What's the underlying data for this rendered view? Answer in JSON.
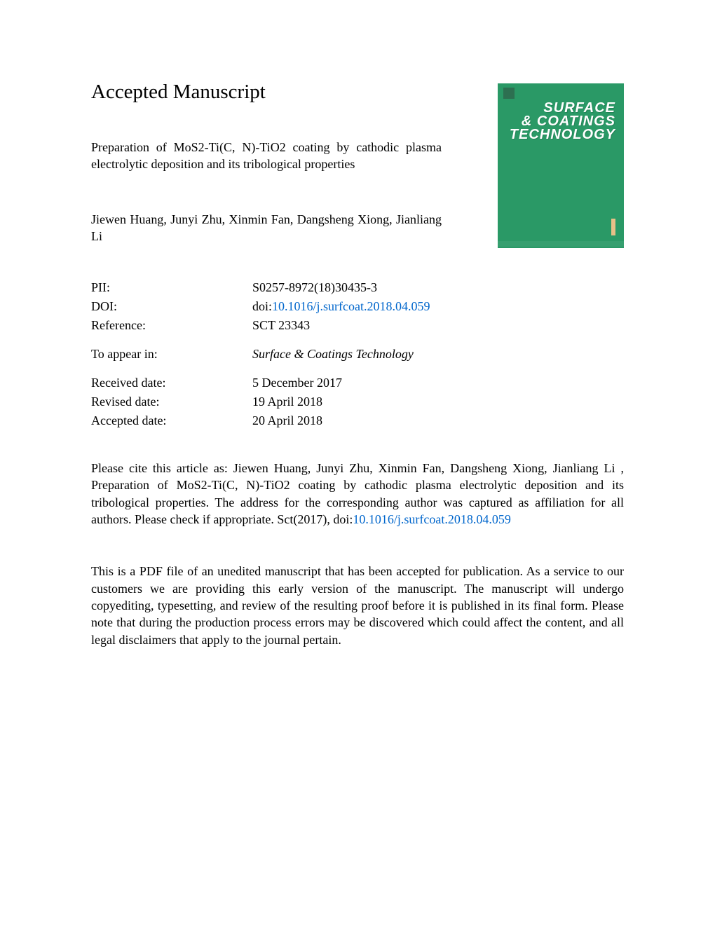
{
  "colors": {
    "link": "#0066cc",
    "text": "#000000",
    "background": "#ffffff",
    "cover_bg": "#2a9966",
    "cover_bar": "#e8c088"
  },
  "typography": {
    "heading_size_pt": 22,
    "body_size_pt": 13,
    "font_family": "Times New Roman"
  },
  "heading": "Accepted Manuscript",
  "title": "Preparation of MoS2-Ti(C, N)-TiO2 coating by cathodic plasma electrolytic deposition and its tribological properties",
  "authors": "Jiewen Huang, Junyi Zhu, Xinmin Fan, Dangsheng Xiong, Jianliang Li",
  "journal_cover": {
    "line1": "SURFACE",
    "line2": "& COATINGS",
    "line3": "TECHNOLOGY"
  },
  "meta": {
    "pii_label": "PII:",
    "pii_value": "S0257-8972(18)30435-3",
    "doi_label": "DOI:",
    "doi_prefix": "doi:",
    "doi_link": "10.1016/j.surfcoat.2018.04.059",
    "ref_label": "Reference:",
    "ref_value": "SCT 23343",
    "appear_label": "To appear in:",
    "appear_value": "Surface & Coatings Technology",
    "received_label": "Received date:",
    "received_value": "5 December 2017",
    "revised_label": "Revised date:",
    "revised_value": "19 April 2018",
    "accepted_label": "Accepted date:",
    "accepted_value": "20 April 2018"
  },
  "cite": {
    "prefix": "Please cite this article as: Jiewen Huang, Junyi Zhu, Xinmin Fan, Dangsheng Xiong, Jianliang Li , Preparation of MoS2-Ti(C, N)-TiO2 coating by cathodic plasma electrolytic deposition and its tribological properties. The address for the corresponding author was captured as affiliation for all authors. Please check if appropriate. Sct(2017), doi:",
    "link": "10.1016/j.surfcoat.2018.04.059"
  },
  "disclaimer": "This is a PDF file of an unedited manuscript that has been accepted for publication. As a service to our customers we are providing this early version of the manuscript. The manuscript will undergo copyediting, typesetting, and review of the resulting proof before it is published in its final form. Please note that during the production process errors may be discovered which could affect the content, and all legal disclaimers that apply to the journal pertain."
}
